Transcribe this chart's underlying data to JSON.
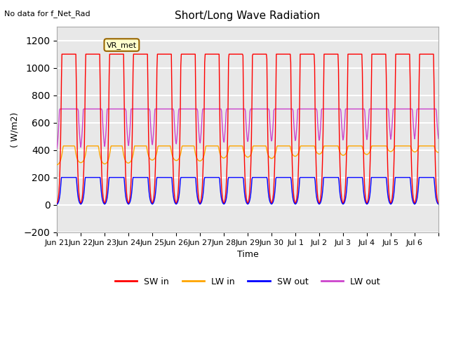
{
  "title": "Short/Long Wave Radiation",
  "xlabel": "Time",
  "ylabel": "( W/m2)",
  "ylim": [
    -200,
    1300
  ],
  "yticks": [
    -200,
    0,
    200,
    400,
    600,
    800,
    1000,
    1200
  ],
  "background_color": "#ffffff",
  "plot_bg_color": "#e8e8e8",
  "grid_color": "#ffffff",
  "no_data_text": "No data for f_Net_Rad",
  "legend_label_text": "VR_met",
  "series": {
    "SW_in": {
      "color": "#ff0000",
      "label": "SW in"
    },
    "LW_in": {
      "color": "#ffa500",
      "label": "LW in"
    },
    "SW_out": {
      "color": "#0000ff",
      "label": "SW out"
    },
    "LW_out": {
      "color": "#cc44cc",
      "label": "LW out"
    }
  },
  "x_tick_labels": [
    "Jun 21",
    "Jun 22",
    "Jun 23",
    "Jun 24",
    "Jun 25",
    "Jun 26",
    "Jun 27",
    "Jun 28",
    "Jun 29",
    "Jun 30",
    "Jul 1",
    "Jul 2",
    "Jul 3",
    "Jul 4",
    "Jul 5",
    "Jul 6"
  ],
  "days": 16,
  "points_per_day": 48
}
